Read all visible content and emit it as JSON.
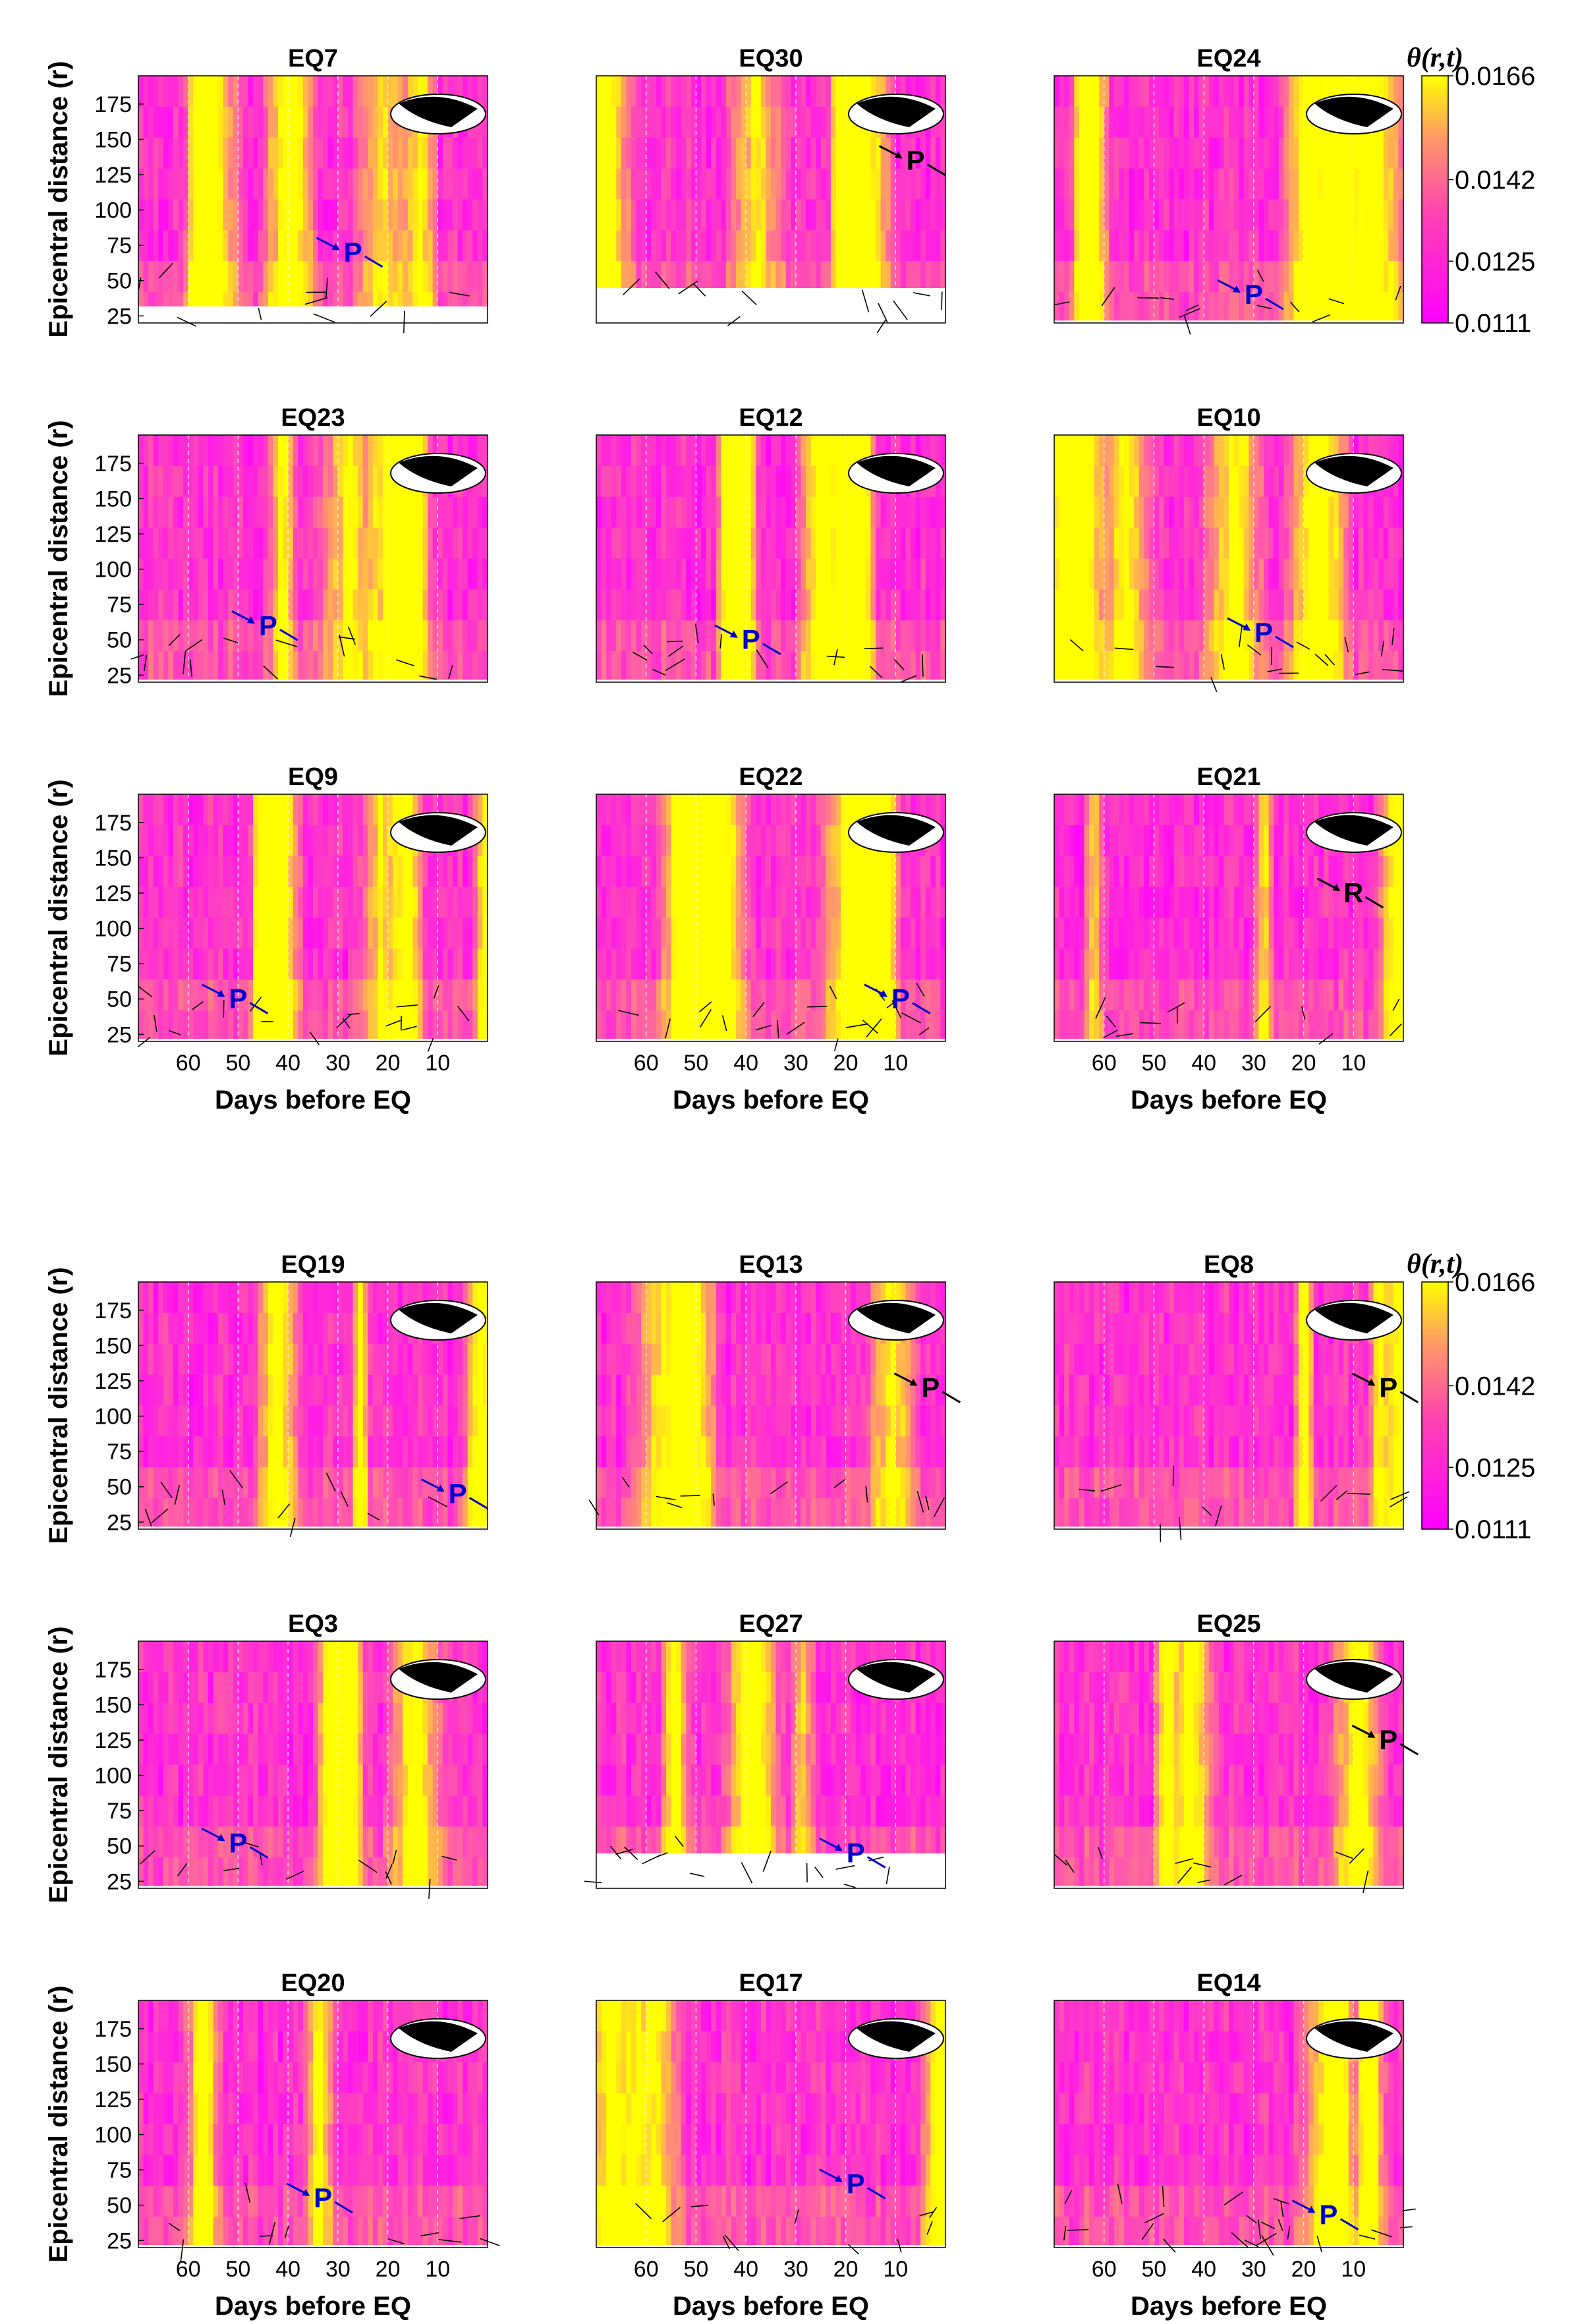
{
  "chart_data": {
    "type": "heatmap",
    "description_axis": {
      "ylabel": "Epicentral distance (r)",
      "xlabel": "Days before EQ",
      "yticks": [
        25,
        50,
        75,
        100,
        125,
        150,
        175
      ],
      "xticks": [
        60,
        50,
        40,
        30,
        20,
        10
      ],
      "ylim": [
        20,
        195
      ],
      "xlim": [
        70,
        0
      ]
    },
    "colorbar": {
      "label": "θ(r,t)",
      "ticks": [
        "0.0166",
        "0.0142",
        "0.0125",
        "0.0111"
      ],
      "min_color": "#ff00ff",
      "max_color": "#ffff00"
    },
    "groups": [
      {
        "panels": [
          {
            "title": "EQ7",
            "marker": "P",
            "marker_color": "#0000cc",
            "marker_r": 70,
            "marker_day": 27,
            "event_floor": 32
          },
          {
            "title": "EQ30",
            "marker": "P",
            "marker_color": "#000000",
            "marker_r": 135,
            "marker_day": 6,
            "event_floor": 45
          },
          {
            "title": "EQ24",
            "marker": "P",
            "marker_color": "#0000cc",
            "marker_r": 40,
            "marker_day": 30,
            "event_floor": 22
          },
          {
            "title": "EQ23",
            "marker": "P",
            "marker_color": "#0000cc",
            "marker_r": 60,
            "marker_day": 44,
            "event_floor": 22
          },
          {
            "title": "EQ12",
            "marker": "P",
            "marker_color": "#0000cc",
            "marker_r": 50,
            "marker_day": 39,
            "event_floor": 22
          },
          {
            "title": "EQ10",
            "marker": "P",
            "marker_color": "#0000cc",
            "marker_r": 55,
            "marker_day": 28,
            "event_floor": 22
          },
          {
            "title": "EQ9",
            "marker": "P",
            "marker_color": "#0000cc",
            "marker_r": 50,
            "marker_day": 50,
            "event_floor": 22
          },
          {
            "title": "EQ22",
            "marker": "P",
            "marker_color": "#0000cc",
            "marker_r": 50,
            "marker_day": 9,
            "event_floor": 22
          },
          {
            "title": "EQ21",
            "marker": "R",
            "marker_color": "#000000",
            "marker_r": 125,
            "marker_day": 10,
            "event_floor": 22
          }
        ]
      },
      {
        "panels": [
          {
            "title": "EQ19",
            "marker": "P",
            "marker_color": "#0000cc",
            "marker_r": 45,
            "marker_day": 6,
            "event_floor": 22
          },
          {
            "title": "EQ13",
            "marker": "P",
            "marker_color": "#000000",
            "marker_r": 120,
            "marker_day": 3,
            "event_floor": 22
          },
          {
            "title": "EQ8",
            "marker": "P",
            "marker_color": "#000000",
            "marker_r": 120,
            "marker_day": 3,
            "event_floor": 22
          },
          {
            "title": "EQ3",
            "marker": "P",
            "marker_color": "#0000cc",
            "marker_r": 52,
            "marker_day": 50,
            "event_floor": 22
          },
          {
            "title": "EQ27",
            "marker": "P",
            "marker_color": "#0000cc",
            "marker_r": 45,
            "marker_day": 18,
            "event_floor": 45
          },
          {
            "title": "EQ25",
            "marker": "P",
            "marker_color": "#000000",
            "marker_r": 125,
            "marker_day": 3,
            "event_floor": 22
          },
          {
            "title": "EQ20",
            "marker": "P",
            "marker_color": "#0000cc",
            "marker_r": 55,
            "marker_day": 33,
            "event_floor": 22
          },
          {
            "title": "EQ17",
            "marker": "P",
            "marker_color": "#0000cc",
            "marker_r": 65,
            "marker_day": 18,
            "event_floor": 22
          },
          {
            "title": "EQ14",
            "marker": "P",
            "marker_color": "#0000cc",
            "marker_r": 43,
            "marker_day": 15,
            "event_floor": 22
          }
        ]
      }
    ]
  }
}
